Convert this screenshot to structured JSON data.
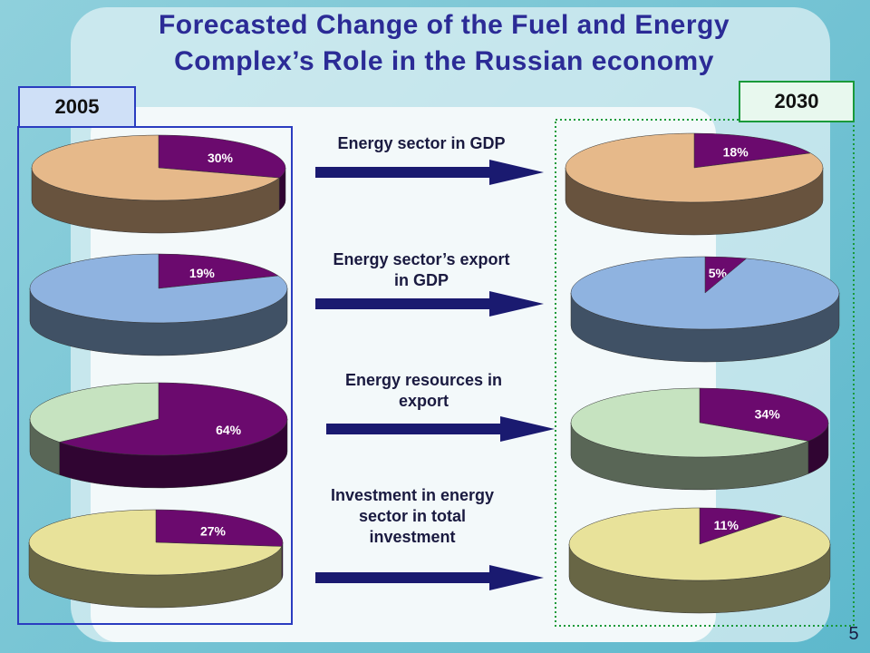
{
  "title": "Forecasted Change of the Fuel and Energy Complex’s Role in the Russian economy",
  "years": [
    "2005",
    "2030"
  ],
  "indicators": [
    "Energy sector in GDP",
    "Energy sector’s export in GDP",
    "Energy resources in export",
    "Investment in energy sector in total investment"
  ],
  "page_number": "5",
  "chart_data": [
    {
      "type": "pie",
      "values": [
        30,
        70
      ],
      "value_labels": [
        "30%",
        null
      ],
      "colors": [
        "#6b0a6e",
        "#e6b98a"
      ]
    },
    {
      "type": "pie",
      "values": [
        19,
        81
      ],
      "value_labels": [
        "19%",
        null
      ],
      "colors": [
        "#6b0a6e",
        "#8fb3e0"
      ]
    },
    {
      "type": "pie",
      "values": [
        64,
        36
      ],
      "value_labels": [
        "64%",
        null
      ],
      "colors": [
        "#6b0a6e",
        "#c6e3c0"
      ]
    },
    {
      "type": "pie",
      "values": [
        27,
        73
      ],
      "value_labels": [
        "27%",
        null
      ],
      "colors": [
        "#6b0a6e",
        "#e8e29a"
      ]
    },
    {
      "type": "pie",
      "values": [
        18,
        82
      ],
      "value_labels": [
        "18%",
        null
      ],
      "colors": [
        "#6b0a6e",
        "#e6b98a"
      ]
    },
    {
      "type": "pie",
      "values": [
        5,
        95
      ],
      "value_labels": [
        "5%",
        null
      ],
      "colors": [
        "#6b0a6e",
        "#8fb3e0"
      ]
    },
    {
      "type": "pie",
      "values": [
        34,
        66
      ],
      "value_labels": [
        "34%",
        null
      ],
      "colors": [
        "#6b0a6e",
        "#c6e3c0"
      ]
    },
    {
      "type": "pie",
      "values": [
        11,
        89
      ],
      "value_labels": [
        "11%",
        null
      ],
      "colors": [
        "#6b0a6e",
        "#e8e29a"
      ]
    }
  ]
}
